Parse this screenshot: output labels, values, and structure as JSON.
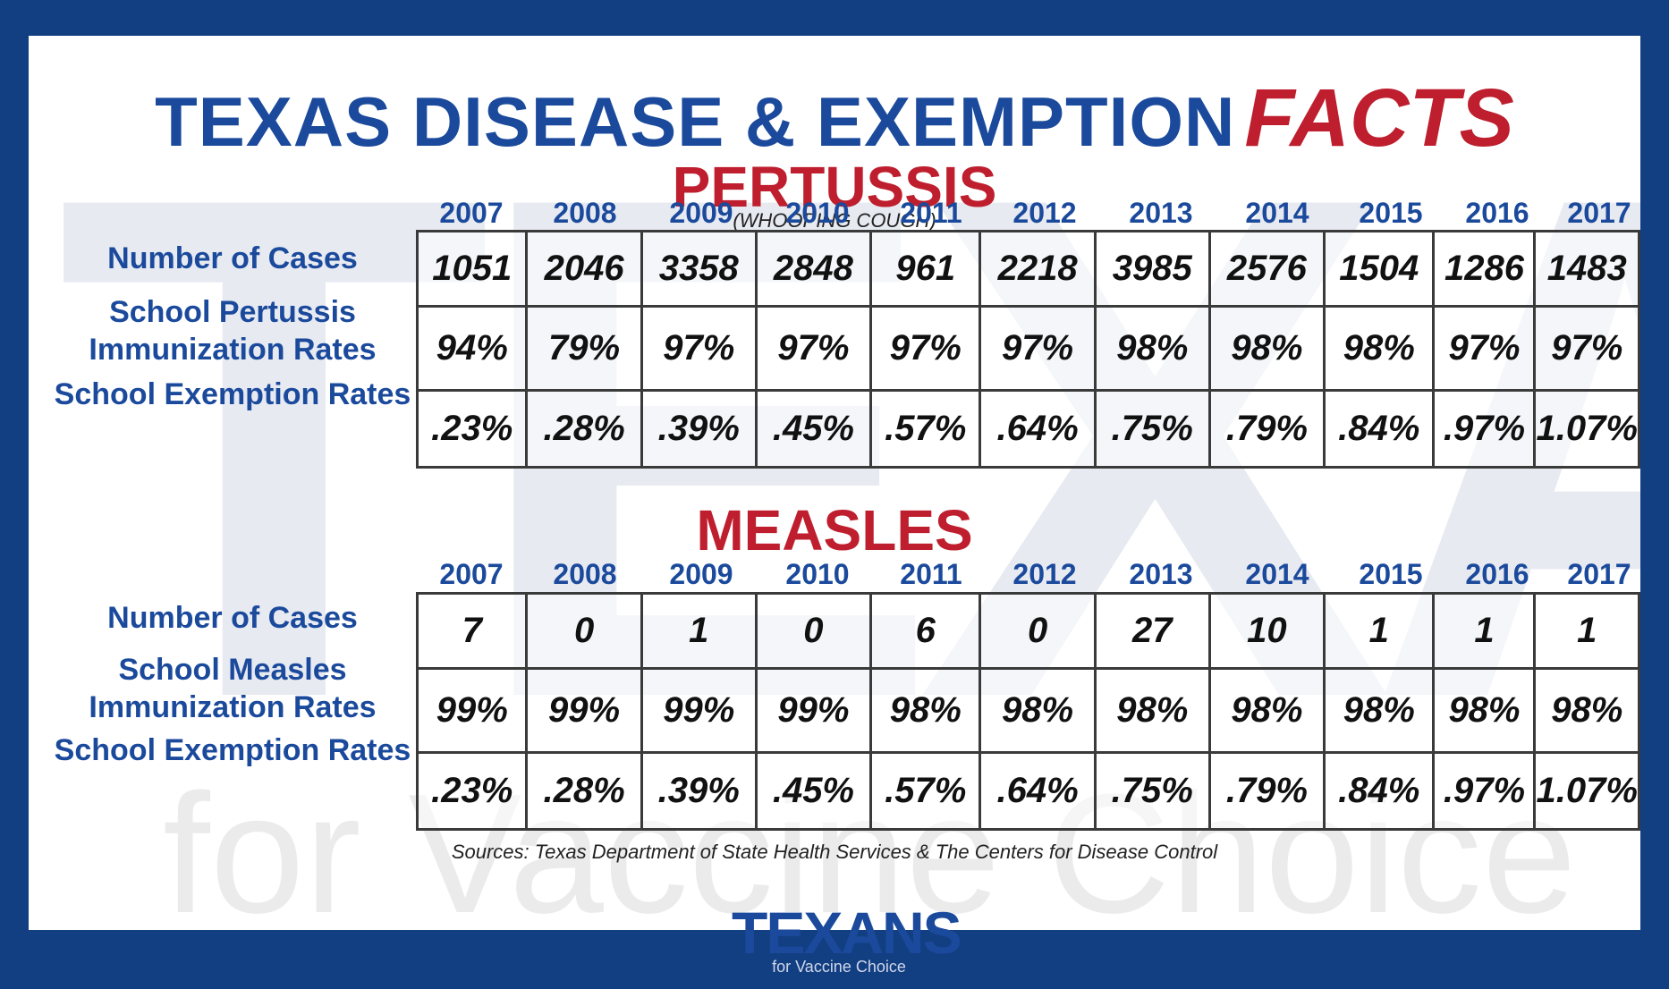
{
  "title": {
    "main": "TEXAS DISEASE & EXEMPTION",
    "accent": "FACTS"
  },
  "watermark": {
    "big": "TEXANS",
    "sub": "for Vaccine Choice"
  },
  "years": [
    "2007",
    "2008",
    "2009",
    "2010",
    "2011",
    "2012",
    "2013",
    "2014",
    "2015",
    "2016",
    "2017"
  ],
  "pertussis": {
    "title": "PERTUSSIS",
    "subtitle": "(WHOOPING COUGH)",
    "labels": [
      "Number of Cases",
      "School Pertussis Immunization Rates",
      "School Exemption Rates"
    ],
    "rows": [
      [
        "1051",
        "2046",
        "3358",
        "2848",
        "961",
        "2218",
        "3985",
        "2576",
        "1504",
        "1286",
        "1483"
      ],
      [
        "94%",
        "79%",
        "97%",
        "97%",
        "97%",
        "97%",
        "98%",
        "98%",
        "98%",
        "97%",
        "97%"
      ],
      [
        ".23%",
        ".28%",
        ".39%",
        ".45%",
        ".57%",
        ".64%",
        ".75%",
        ".79%",
        ".84%",
        ".97%",
        "1.07%"
      ]
    ]
  },
  "measles": {
    "title": "MEASLES",
    "labels": [
      "Number of Cases",
      "School Measles Immunization Rates",
      "School Exemption Rates"
    ],
    "rows": [
      [
        "7",
        "0",
        "1",
        "0",
        "6",
        "0",
        "27",
        "10",
        "1",
        "1",
        "1"
      ],
      [
        "99%",
        "99%",
        "99%",
        "99%",
        "98%",
        "98%",
        "98%",
        "98%",
        "98%",
        "98%",
        "98%"
      ],
      [
        ".23%",
        ".28%",
        ".39%",
        ".45%",
        ".57%",
        ".64%",
        ".75%",
        ".79%",
        ".84%",
        ".97%",
        "1.07%"
      ]
    ]
  },
  "sources": "Sources: Texas Department of State Health Services & The Centers for Disease Control",
  "logo": {
    "text": "TEXANS",
    "sub": "for Vaccine Choice"
  },
  "colors": {
    "blue": "#1b4a9c",
    "red": "#be1e2d",
    "frame": "#123e82"
  }
}
